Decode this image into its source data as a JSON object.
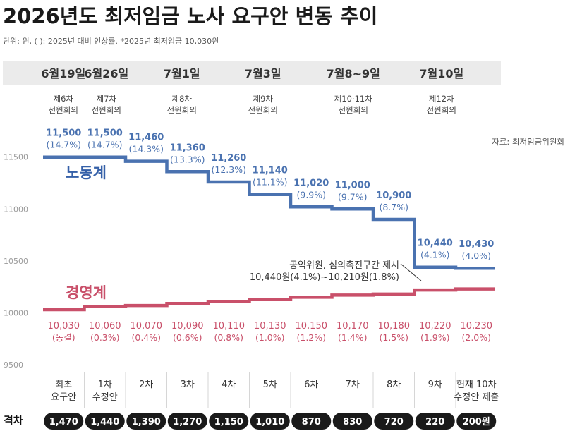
{
  "title": "2026년도 최저임금 노사 요구안 변동 추이",
  "subtitle": "단위: 원, ( ): 2025년 대비 인상률.  *2025년 최저임금 10,030원",
  "source": "자료: 최저임금위원회",
  "dates": [
    "6월19일",
    "6월26일",
    "7월1일",
    "7월3일",
    "7월8~9일",
    "7월10일"
  ],
  "meetings": [
    {
      "line1": "제6차",
      "line2": "전원회의"
    },
    {
      "line1": "제7차",
      "line2": "전원회의"
    },
    {
      "line1": "제8차",
      "line2": "전원회의"
    },
    {
      "line1": "제9차",
      "line2": "전원회의"
    },
    {
      "line1": "제10·11차",
      "line2": "전원회의"
    },
    {
      "line1": "제12차",
      "line2": "전원회의"
    }
  ],
  "annotation": {
    "line1": "공익위원, 심의촉진구간 제시",
    "line2": "10,440원(4.1%)~10,210원(1.8%)"
  },
  "gap_label": "격차",
  "colors": {
    "labor": "#4a72b0",
    "management": "#c9506a",
    "pill": "#1a1a1a",
    "date_bg": "#ebebeb"
  },
  "chart_data": {
    "type": "line",
    "title": "2026년도 최저임금 노사 요구안 변동 추이",
    "ylabel": "원",
    "ylim": [
      9500,
      11600
    ],
    "yticks": [
      9500,
      10000,
      10500,
      11000,
      11500
    ],
    "step": true,
    "grid": false,
    "categories": [
      {
        "line1": "최초",
        "line2": "요구안"
      },
      {
        "line1": "1차",
        "line2": "수정안"
      },
      {
        "line1": "2차",
        "line2": ""
      },
      {
        "line1": "3차",
        "line2": ""
      },
      {
        "line1": "4차",
        "line2": ""
      },
      {
        "line1": "5차",
        "line2": ""
      },
      {
        "line1": "6차",
        "line2": ""
      },
      {
        "line1": "7차",
        "line2": ""
      },
      {
        "line1": "8차",
        "line2": ""
      },
      {
        "line1": "9차",
        "line2": ""
      },
      {
        "line1": "현재 10차",
        "line2": "수정안 제출"
      }
    ],
    "series": [
      {
        "name": "노동계",
        "values": [
          11500,
          11500,
          11460,
          11360,
          11260,
          11140,
          11020,
          11000,
          10900,
          10440,
          10430
        ],
        "labels": [
          "11,500",
          "11,500",
          "11,460",
          "11,360",
          "11,260",
          "11,140",
          "11,020",
          "11,000",
          "10,900",
          "10,440",
          "10,430"
        ],
        "pct": [
          "(14.7%)",
          "(14.7%)",
          "(14.3%)",
          "(13.3%)",
          "(12.3%)",
          "(11.1%)",
          "(9.9%)",
          "(9.7%)",
          "(8.7%)",
          "(4.1%)",
          "(4.0%)"
        ]
      },
      {
        "name": "경영계",
        "values": [
          10030,
          10060,
          10070,
          10090,
          10110,
          10130,
          10150,
          10170,
          10180,
          10220,
          10230
        ],
        "labels": [
          "10,030",
          "10,060",
          "10,070",
          "10,090",
          "10,110",
          "10,130",
          "10,150",
          "10,170",
          "10,180",
          "10,220",
          "10,230"
        ],
        "pct": [
          "(동결)",
          "(0.3%)",
          "(0.4%)",
          "(0.6%)",
          "(0.8%)",
          "(1.0%)",
          "(1.2%)",
          "(1.4%)",
          "(1.5%)",
          "(1.9%)",
          "(2.0%)"
        ]
      }
    ],
    "gap": [
      "1,470",
      "1,440",
      "1,390",
      "1,270",
      "1,150",
      "1,010",
      "870",
      "830",
      "720",
      "220",
      "200원"
    ]
  }
}
